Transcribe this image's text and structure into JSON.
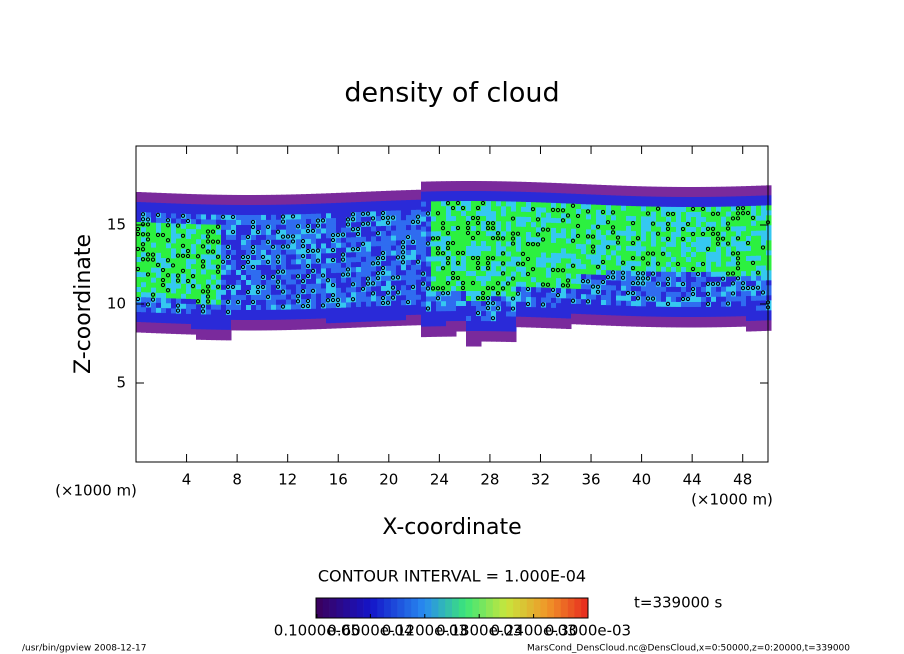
{
  "chart_data": {
    "type": "contour",
    "title": "density of cloud",
    "xlabel": "X-coordinate",
    "ylabel": "Z-coordinate",
    "x_unit": "(×1000 m)",
    "y_unit": "(×1000 m)",
    "xlim": [
      0,
      50
    ],
    "xticks": [
      4,
      8,
      12,
      16,
      20,
      24,
      28,
      32,
      36,
      40,
      44,
      48
    ],
    "ylim": [
      0,
      20
    ],
    "yticks": [
      5,
      10,
      15
    ],
    "contour_interval_label": "CONTOUR INTERVAL = 1.000E-04",
    "time_label": "t=339000 s",
    "colorbar": {
      "clim": [
        0,
        0.0003
      ],
      "ticks": [
        {
          "value": 1e-06,
          "label": "0.1000e-05"
        },
        {
          "value": 6e-05,
          "label": "0.6000e-04"
        },
        {
          "value": 0.00012,
          "label": "0.1200e-03"
        },
        {
          "value": 0.00018,
          "label": "0.1800e-03"
        },
        {
          "value": 0.00024,
          "label": "0.2400e-03"
        },
        {
          "value": 0.0003,
          "label": "0.3000e-03"
        }
      ]
    }
  },
  "footer": {
    "left": "/usr/bin/gpview   2008-12-17",
    "right": "MarsCond_DensCloud.nc@DensCloud,x=0:50000,z=0:20000,t=339000"
  }
}
